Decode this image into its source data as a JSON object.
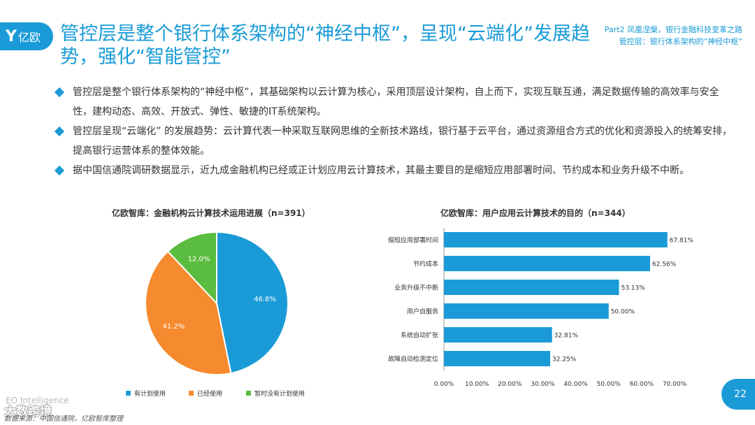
{
  "logo": {
    "mark": "Y",
    "text": "亿欧"
  },
  "header": {
    "title": "管控层是整个银行体系架构的“神经中枢”，呈现“云端化”发展趋势，强化“智能管控”",
    "top_right_line1": "Part2 凤凰涅槃，银行金融科技变革之路",
    "top_right_line2": "管控层：银行体系架构的“神经中枢”"
  },
  "bullets": [
    "管控层是整个银行体系架构的“神经中枢”，其基础架构以云计算为核心，采用顶层设计架构，自上而下，实现互联互通，满足数据传输的高效率与安全性，建构动态、高效、开放式、弹性、敏捷的IT系统架构。",
    "管控层呈现“云端化” 的发展趋势：云计算代表一种采取互联网思维的全新技术路线，银行基于云平台，通过资源组合方式的优化和资源投入的统筹安排，提高银行运营体系的整体效能。",
    "据中国信通院调研数据显示，近九成金融机构已经或正计划应用云计算技术，其最主要目的是缩短应用部署时间、节约成本和业务升级不中断。"
  ],
  "colors": {
    "accent": "#1a9bd7",
    "orange": "#f58a2e",
    "green": "#5bbd3f"
  },
  "chart_data": [
    {
      "type": "pie",
      "title": "亿欧智库：金融机构云计算技术运用进展（n=391）",
      "slices": [
        {
          "label": "有计划使用",
          "value": 46.8,
          "display": "46.8%",
          "color": "#1a9bd7"
        },
        {
          "label": "已经使用",
          "value": 41.2,
          "display": "41.2%",
          "color": "#f58a2e"
        },
        {
          "label": "暂时没有计划使用",
          "value": 12.0,
          "display": "12.0%",
          "color": "#5bbd3f"
        }
      ],
      "legend_position": "bottom"
    },
    {
      "type": "bar",
      "orientation": "horizontal",
      "title": "亿欧智库：用户应用云计算技术的目的（n=344）",
      "categories": [
        "缩短应用部署时间",
        "节约成本",
        "业务升级不中断",
        "用户自服务",
        "系统自动扩张",
        "故障自动检测定位"
      ],
      "values": [
        67.81,
        62.56,
        53.13,
        50.0,
        32.81,
        32.25
      ],
      "value_labels": [
        "67.81%",
        "62.56%",
        "53.13%",
        "50.00%",
        "32.81%",
        "32.25%"
      ],
      "xlim": [
        0,
        70
      ],
      "x_ticks": [
        "0.00%",
        "10.00%",
        "20.00%",
        "30.00%",
        "40.00%",
        "50.00%",
        "60.00%",
        "70.00%"
      ],
      "color": "#1a9bd7",
      "grid": false
    }
  ],
  "footer": {
    "brand_en": "EO Intelligence",
    "watermark": "大数跨境",
    "source": "数据来源：中国信通院，亿欧智库整理",
    "page_number": "22"
  }
}
